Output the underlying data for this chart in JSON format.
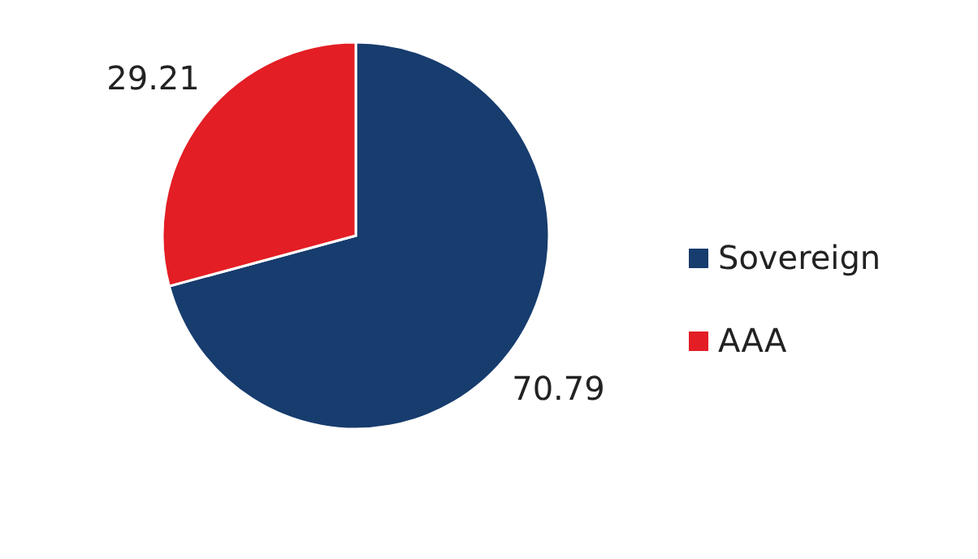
{
  "chart_data": {
    "type": "pie",
    "categories": [
      "Sovereign",
      "AAA"
    ],
    "values": [
      70.79,
      29.21
    ],
    "colors": [
      "#173c6e",
      "#e31e24"
    ],
    "data_labels": true,
    "legend": "right"
  }
}
